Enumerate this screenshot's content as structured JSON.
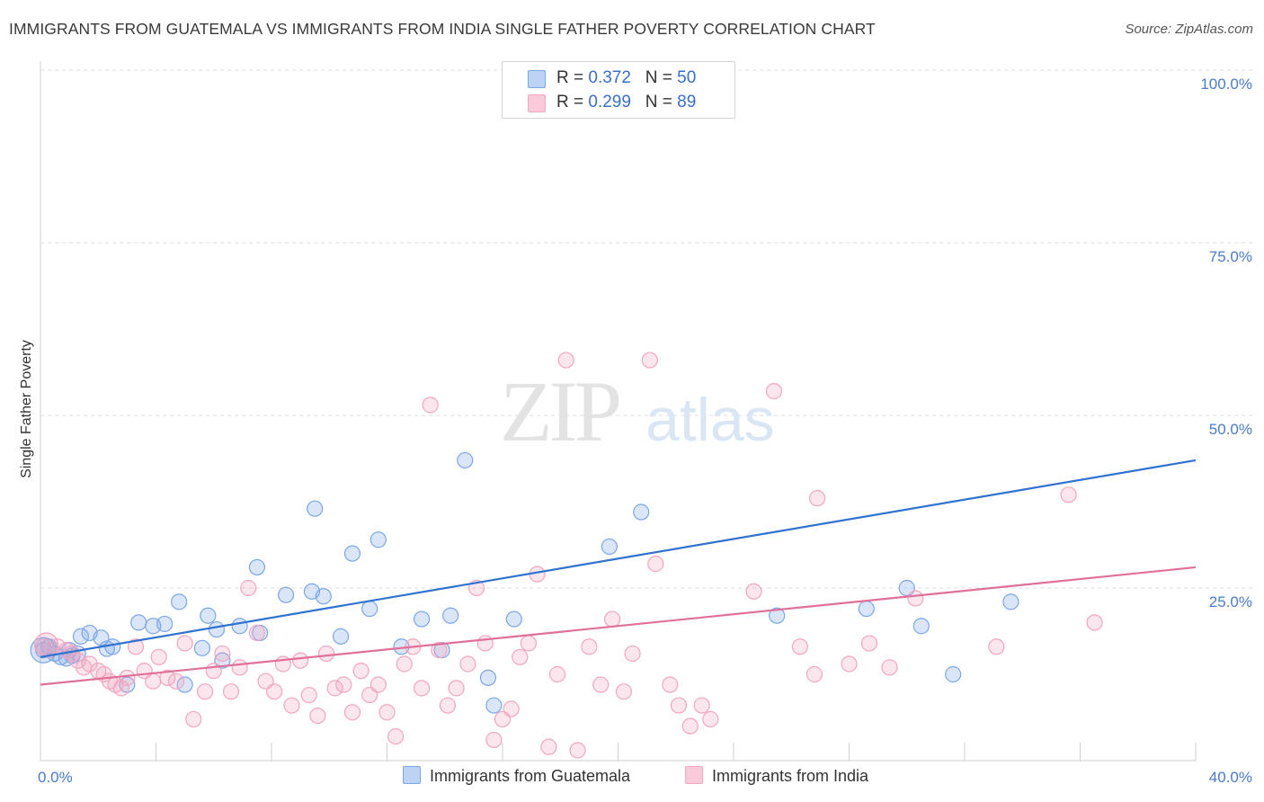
{
  "title": "IMMIGRANTS FROM GUATEMALA VS IMMIGRANTS FROM INDIA SINGLE FATHER POVERTY CORRELATION CHART",
  "source": "Source: ZipAtlas.com",
  "watermark": {
    "zip": "ZIP",
    "atlas": "atlas"
  },
  "legend": {
    "rows": [
      {
        "r_label": "R = ",
        "r_value": "0.372",
        "n_label": "N = ",
        "n_value": "50"
      },
      {
        "r_label": "R = ",
        "r_value": "0.299",
        "n_label": "N = ",
        "n_value": "89"
      }
    ]
  },
  "chart_data": {
    "type": "scatter",
    "xlabel": "",
    "ylabel": "Single Father Poverty",
    "xlim": [
      0,
      40
    ],
    "ylim": [
      0,
      100
    ],
    "x_tick_labels": [
      "0.0%",
      "40.0%"
    ],
    "y_ticks": [
      25,
      50,
      75,
      100
    ],
    "y_tick_labels": [
      "25.0%",
      "50.0%",
      "75.0%",
      "100.0%"
    ],
    "grid": true,
    "legend_position": "top-center",
    "series": [
      {
        "name": "Immigrants from Guatemala",
        "color": "#7ba7e6",
        "line_color": "#2f72d0",
        "trend": {
          "x": [
            0,
            40
          ],
          "y": [
            15.0,
            43.5
          ]
        },
        "points": [
          [
            0.1,
            16.0
          ],
          [
            0.3,
            16.5
          ],
          [
            0.5,
            15.5
          ],
          [
            0.7,
            15.0
          ],
          [
            0.9,
            14.8
          ],
          [
            1.1,
            15.2
          ],
          [
            1.4,
            18.0
          ],
          [
            1.7,
            18.5
          ],
          [
            2.1,
            17.8
          ],
          [
            2.3,
            16.2
          ],
          [
            2.5,
            16.5
          ],
          [
            3.0,
            11.0
          ],
          [
            3.4,
            20.0
          ],
          [
            3.9,
            19.5
          ],
          [
            4.3,
            19.8
          ],
          [
            4.8,
            23.0
          ],
          [
            5.0,
            11.0
          ],
          [
            5.6,
            16.3
          ],
          [
            5.8,
            21.0
          ],
          [
            6.1,
            19.0
          ],
          [
            6.3,
            14.5
          ],
          [
            6.9,
            19.5
          ],
          [
            7.5,
            28.0
          ],
          [
            7.6,
            18.5
          ],
          [
            8.5,
            24.0
          ],
          [
            9.4,
            24.5
          ],
          [
            9.5,
            36.5
          ],
          [
            9.8,
            23.8
          ],
          [
            10.4,
            18.0
          ],
          [
            10.8,
            30.0
          ],
          [
            11.4,
            22.0
          ],
          [
            11.7,
            32.0
          ],
          [
            12.5,
            16.5
          ],
          [
            13.2,
            20.5
          ],
          [
            13.9,
            16.0
          ],
          [
            14.2,
            21.0
          ],
          [
            14.7,
            43.5
          ],
          [
            15.5,
            12.0
          ],
          [
            15.7,
            8.0
          ],
          [
            16.4,
            20.5
          ],
          [
            19.7,
            31.0
          ],
          [
            20.8,
            36.0
          ],
          [
            25.5,
            21.0
          ],
          [
            28.6,
            22.0
          ],
          [
            30.0,
            25.0
          ],
          [
            30.5,
            19.5
          ],
          [
            31.6,
            12.5
          ],
          [
            33.6,
            23.0
          ],
          [
            1.0,
            16.0
          ],
          [
            1.3,
            15.5
          ]
        ]
      },
      {
        "name": "Immigrants from India",
        "color": "#f2a6bf",
        "line_color": "#e0709a",
        "trend": {
          "x": [
            0,
            40
          ],
          "y": [
            11.0,
            28.0
          ]
        },
        "points": [
          [
            0.1,
            16.5
          ],
          [
            0.3,
            16.0
          ],
          [
            0.6,
            16.5
          ],
          [
            0.9,
            16.0
          ],
          [
            1.1,
            15.5
          ],
          [
            1.3,
            14.5
          ],
          [
            1.5,
            13.5
          ],
          [
            1.7,
            14.0
          ],
          [
            2.0,
            13.0
          ],
          [
            2.2,
            12.5
          ],
          [
            2.4,
            11.5
          ],
          [
            2.6,
            11.0
          ],
          [
            2.8,
            10.5
          ],
          [
            3.0,
            12.0
          ],
          [
            3.3,
            16.5
          ],
          [
            3.6,
            13.0
          ],
          [
            3.9,
            11.5
          ],
          [
            4.1,
            15.0
          ],
          [
            4.4,
            12.0
          ],
          [
            4.7,
            11.5
          ],
          [
            5.0,
            17.0
          ],
          [
            5.3,
            6.0
          ],
          [
            5.7,
            10.0
          ],
          [
            6.0,
            13.0
          ],
          [
            6.3,
            15.5
          ],
          [
            6.6,
            10.0
          ],
          [
            6.9,
            13.5
          ],
          [
            7.2,
            25.0
          ],
          [
            7.5,
            18.5
          ],
          [
            7.8,
            11.5
          ],
          [
            8.1,
            10.0
          ],
          [
            8.4,
            14.0
          ],
          [
            8.7,
            8.0
          ],
          [
            9.0,
            14.5
          ],
          [
            9.3,
            9.5
          ],
          [
            9.6,
            6.5
          ],
          [
            9.9,
            15.5
          ],
          [
            10.2,
            10.5
          ],
          [
            10.5,
            11.0
          ],
          [
            10.8,
            7.0
          ],
          [
            11.1,
            13.0
          ],
          [
            11.4,
            9.5
          ],
          [
            11.7,
            11.0
          ],
          [
            12.0,
            7.0
          ],
          [
            12.3,
            3.5
          ],
          [
            12.6,
            14.0
          ],
          [
            12.9,
            16.5
          ],
          [
            13.2,
            10.5
          ],
          [
            13.5,
            51.5
          ],
          [
            13.8,
            16.0
          ],
          [
            14.1,
            8.0
          ],
          [
            14.4,
            10.5
          ],
          [
            14.8,
            14.0
          ],
          [
            15.1,
            25.0
          ],
          [
            15.4,
            17.0
          ],
          [
            15.7,
            3.0
          ],
          [
            16.0,
            6.0
          ],
          [
            16.3,
            7.5
          ],
          [
            16.6,
            15.0
          ],
          [
            16.9,
            17.0
          ],
          [
            17.2,
            27.0
          ],
          [
            17.6,
            2.0
          ],
          [
            17.9,
            12.5
          ],
          [
            18.2,
            58.0
          ],
          [
            18.6,
            1.5
          ],
          [
            19.0,
            16.5
          ],
          [
            19.4,
            11.0
          ],
          [
            19.8,
            20.5
          ],
          [
            20.2,
            10.0
          ],
          [
            20.5,
            15.5
          ],
          [
            21.1,
            58.0
          ],
          [
            21.3,
            28.5
          ],
          [
            22.1,
            8.0
          ],
          [
            22.5,
            5.0
          ],
          [
            22.9,
            8.0
          ],
          [
            23.2,
            6.0
          ],
          [
            24.7,
            24.5
          ],
          [
            25.4,
            53.5
          ],
          [
            26.3,
            16.5
          ],
          [
            26.8,
            12.5
          ],
          [
            26.9,
            38.0
          ],
          [
            28.0,
            14.0
          ],
          [
            28.7,
            17.0
          ],
          [
            29.4,
            13.5
          ],
          [
            30.3,
            23.5
          ],
          [
            33.1,
            16.5
          ],
          [
            35.6,
            38.5
          ],
          [
            36.5,
            20.0
          ],
          [
            21.8,
            11.0
          ]
        ]
      }
    ]
  }
}
